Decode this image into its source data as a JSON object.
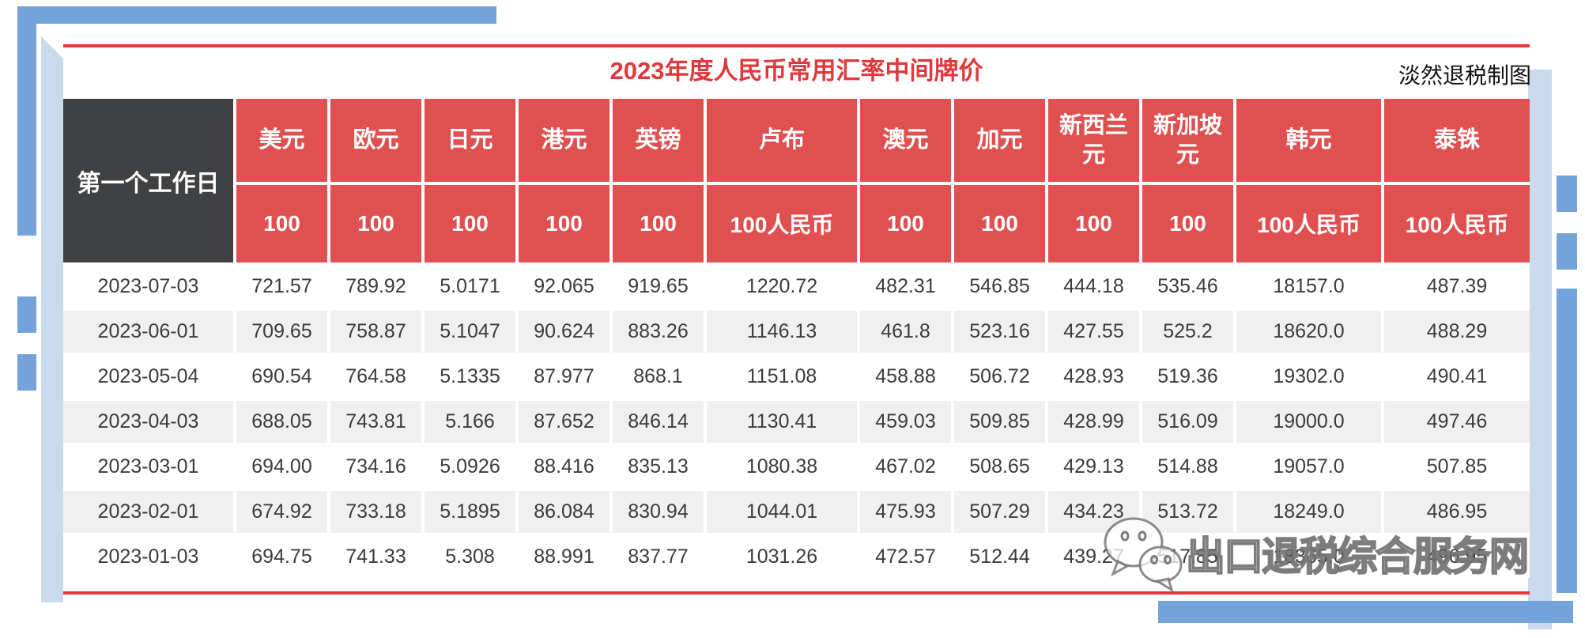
{
  "header": {
    "credit": "淡然退税制图"
  },
  "watermark": {
    "text": "出口退税综合服务网",
    "logo": "wechat-icon"
  },
  "colors": {
    "header_red": "#e05050",
    "title_red": "#e0383c",
    "corner_dark": "#3f4143",
    "stripe_gray": "#f0f0f0",
    "decor_medium_blue": "#74a3dc",
    "decor_light_blue": "#c9d9ee"
  },
  "chart_data": {
    "type": "table",
    "title": "2023年度人民币常用汇率中间牌价",
    "corner_header": "第一个工作日",
    "columns": [
      {
        "label": "美元",
        "unit": "100"
      },
      {
        "label": "欧元",
        "unit": "100"
      },
      {
        "label": "日元",
        "unit": "100"
      },
      {
        "label": "港元",
        "unit": "100"
      },
      {
        "label": "英镑",
        "unit": "100"
      },
      {
        "label": "卢布",
        "unit": "100人民币"
      },
      {
        "label": "澳元",
        "unit": "100"
      },
      {
        "label": "加元",
        "unit": "100"
      },
      {
        "label": "新西兰元",
        "unit": "100"
      },
      {
        "label": "新加坡元",
        "unit": "100"
      },
      {
        "label": "韩元",
        "unit": "100人民币"
      },
      {
        "label": "泰铢",
        "unit": "100人民币"
      }
    ],
    "rows": [
      {
        "date": "2023-07-03",
        "values": [
          "721.57",
          "789.92",
          "5.0171",
          "92.065",
          "919.65",
          "1220.72",
          "482.31",
          "546.85",
          "444.18",
          "535.46",
          "18157.0",
          "487.39"
        ]
      },
      {
        "date": "2023-06-01",
        "values": [
          "709.65",
          "758.87",
          "5.1047",
          "90.624",
          "883.26",
          "1146.13",
          "461.8",
          "523.16",
          "427.55",
          "525.2",
          "18620.0",
          "488.29"
        ]
      },
      {
        "date": "2023-05-04",
        "values": [
          "690.54",
          "764.58",
          "5.1335",
          "87.977",
          "868.1",
          "1151.08",
          "458.88",
          "506.72",
          "428.93",
          "519.36",
          "19302.0",
          "490.41"
        ]
      },
      {
        "date": "2023-04-03",
        "values": [
          "688.05",
          "743.81",
          "5.166",
          "87.652",
          "846.14",
          "1130.41",
          "459.03",
          "509.85",
          "428.99",
          "516.09",
          "19000.0",
          "497.46"
        ]
      },
      {
        "date": "2023-03-01",
        "values": [
          "694.00",
          "734.16",
          "5.0926",
          "88.416",
          "835.13",
          "1080.38",
          "467.02",
          "508.65",
          "429.13",
          "514.88",
          "19057.0",
          "507.85"
        ]
      },
      {
        "date": "2023-02-01",
        "values": [
          "674.92",
          "733.18",
          "5.1895",
          "86.084",
          "830.94",
          "1044.01",
          "475.93",
          "507.29",
          "434.23",
          "513.72",
          "18249.0",
          "486.95"
        ]
      },
      {
        "date": "2023-01-03",
        "values": [
          "694.75",
          "741.33",
          "5.308",
          "88.991",
          "837.77",
          "1031.26",
          "472.57",
          "512.44",
          "439.27",
          "517.85",
          "18365.0",
          "496.95"
        ]
      }
    ]
  }
}
